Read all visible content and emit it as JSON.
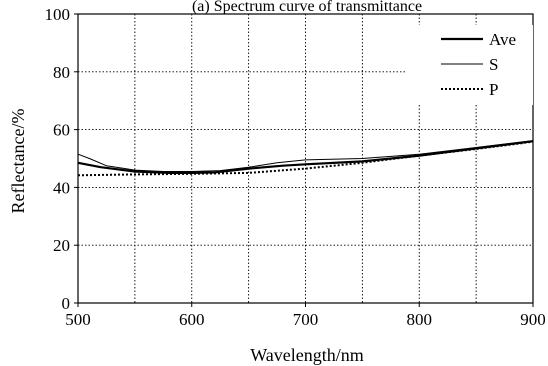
{
  "chart_data": {
    "type": "line",
    "title": "(a) Spectrum curve of transmittance",
    "xlabel": "Wavelength/nm",
    "ylabel": "Reflectance/%",
    "xlim": [
      500,
      900
    ],
    "ylim": [
      0,
      100
    ],
    "xticks": [
      "500",
      "600",
      "700",
      "800",
      "900"
    ],
    "yticks": [
      "0",
      "20",
      "40",
      "60",
      "80",
      "100"
    ],
    "grid": true,
    "legend_position": "top-right",
    "series": [
      {
        "name": "Ave",
        "style": "thick-solid",
        "color": "#000000",
        "x": [
          500,
          520,
          550,
          580,
          600,
          620,
          650,
          680,
          700,
          750,
          800,
          850,
          900
        ],
        "y": [
          48.5,
          47.0,
          45.5,
          45.0,
          45.0,
          45.2,
          46.5,
          47.5,
          48.0,
          49.0,
          51.0,
          53.5,
          56.0
        ]
      },
      {
        "name": "S",
        "style": "thin-solid",
        "color": "#000000",
        "x": [
          500,
          510,
          525,
          550,
          575,
          600,
          625,
          650,
          675,
          700,
          750,
          800,
          850,
          900
        ],
        "y": [
          51.5,
          50.0,
          47.5,
          46.0,
          45.5,
          45.5,
          45.8,
          47.0,
          48.5,
          49.5,
          50.0,
          51.5,
          53.8,
          56.2
        ]
      },
      {
        "name": "P",
        "style": "dotted",
        "color": "#000000",
        "x": [
          500,
          550,
          600,
          650,
          700,
          750,
          800,
          850,
          900
        ],
        "y": [
          44.2,
          44.5,
          44.7,
          45.0,
          46.5,
          48.5,
          51.0,
          53.3,
          55.8
        ]
      }
    ]
  }
}
